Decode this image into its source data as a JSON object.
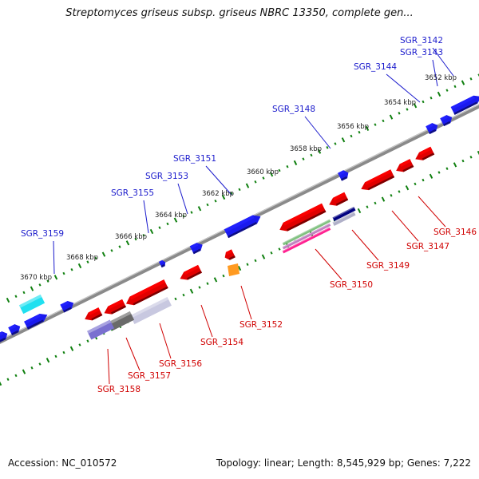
{
  "title": "Streptomyces griseus subsp. griseus NBRC 13350, complete gen...",
  "footer": {
    "accession": "Accession: NC_010572",
    "summary": "Topology: linear; Length: 8,545,929 bp; Genes: 7,222"
  },
  "colors": {
    "forward_gene": "#1a1aee",
    "reverse_gene": "#e00000",
    "forward_label": "#1a1acc",
    "reverse_label": "#d00000",
    "tick_dots": "#108010",
    "backbone": "#8a8a8a",
    "cyan_gene": "#20e0f0",
    "orange_gene": "#ff9a20"
  },
  "scale_labels": [
    "3652 kbp",
    "3654 kbp",
    "3656 kbp",
    "3658 kbp",
    "3660 kbp",
    "3662 kbp",
    "3664 kbp",
    "3666 kbp",
    "3668 kbp",
    "3670 kbp"
  ],
  "forward_genes": [
    "SGR_3142",
    "SGR_3143",
    "SGR_3144",
    "SGR_3148",
    "SGR_3151",
    "SGR_3153",
    "SGR_3155",
    "SGR_3159"
  ],
  "reverse_genes": [
    "SGR_3146",
    "SGR_3147",
    "SGR_3149",
    "SGR_3150",
    "SGR_3152",
    "SGR_3154",
    "SGR_3156",
    "SGR_3157",
    "SGR_3158"
  ]
}
